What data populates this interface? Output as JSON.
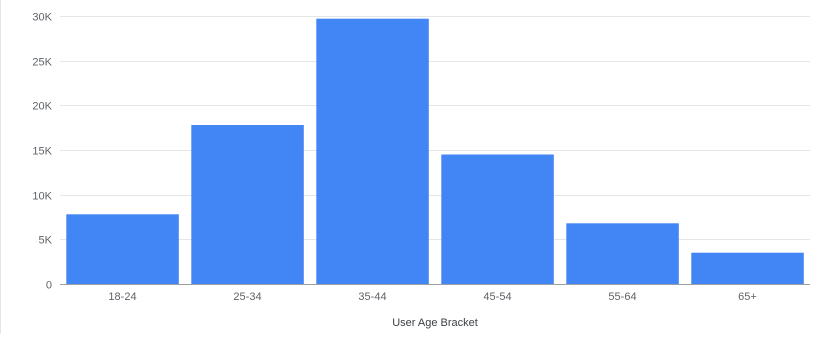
{
  "chart_data": {
    "type": "bar",
    "title": "",
    "xlabel": "User Age Bracket",
    "ylabel": "",
    "categories": [
      "18-24",
      "25-34",
      "35-44",
      "45-54",
      "55-64",
      "65+"
    ],
    "values": [
      7800,
      17800,
      29700,
      14500,
      6800,
      3500
    ],
    "ylim": [
      0,
      30000
    ],
    "yticks": [
      0,
      5000,
      10000,
      15000,
      20000,
      25000,
      30000
    ],
    "ytick_labels": [
      "0",
      "5K",
      "10K",
      "15K",
      "20K",
      "25K",
      "30K"
    ],
    "grid": true,
    "legend": "none",
    "colors": {
      "bar": "#4285f4",
      "grid": "#e6e6e6",
      "baseline": "#9aa0a6",
      "tick_text": "#5f6368"
    }
  }
}
